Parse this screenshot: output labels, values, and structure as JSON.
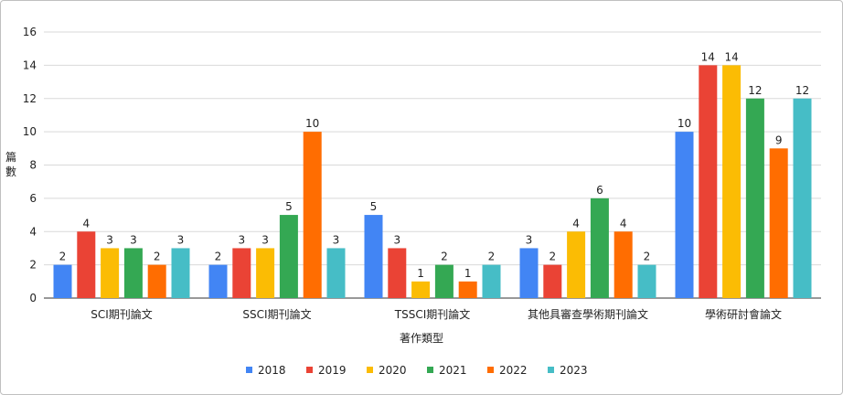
{
  "chart_data": {
    "type": "bar",
    "title": "",
    "xlabel": "著作類型",
    "ylabel": "篇數",
    "ylim": [
      0,
      16
    ],
    "yticks": [
      0,
      2,
      4,
      6,
      8,
      10,
      12,
      14,
      16
    ],
    "grid": true,
    "legend_position": "bottom",
    "categories": [
      "SCI期刊論文",
      "SSCI期刊論文",
      "TSSCI期刊論文",
      "其他具審查學術期刊論文",
      "學術研討會論文"
    ],
    "series": [
      {
        "name": "2018",
        "color": "#4285f4",
        "values": [
          2,
          2,
          5,
          3,
          10
        ]
      },
      {
        "name": "2019",
        "color": "#ea4335",
        "values": [
          4,
          3,
          3,
          2,
          14
        ]
      },
      {
        "name": "2020",
        "color": "#fbbc04",
        "values": [
          3,
          3,
          1,
          4,
          14
        ]
      },
      {
        "name": "2021",
        "color": "#34a853",
        "values": [
          3,
          5,
          2,
          6,
          12
        ]
      },
      {
        "name": "2022",
        "color": "#ff6d01",
        "values": [
          2,
          10,
          1,
          4,
          9
        ]
      },
      {
        "name": "2023",
        "color": "#46bdc6",
        "values": [
          3,
          3,
          2,
          2,
          12
        ]
      }
    ]
  }
}
